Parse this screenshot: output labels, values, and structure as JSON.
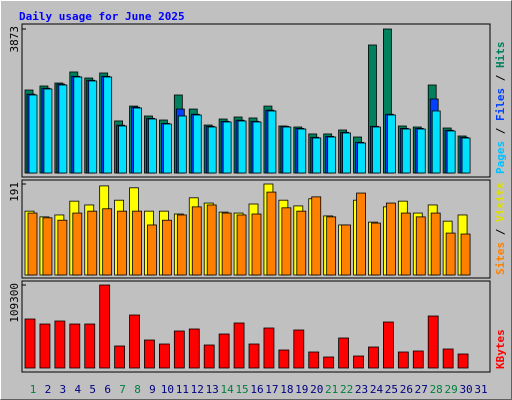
{
  "chart_data": {
    "type": "bar",
    "title": "Daily usage for June 2025",
    "legend_separator": " / ",
    "categories": [
      "1",
      "2",
      "3",
      "4",
      "5",
      "6",
      "7",
      "8",
      "9",
      "10",
      "11",
      "12",
      "13",
      "14",
      "15",
      "16",
      "17",
      "18",
      "19",
      "20",
      "21",
      "22",
      "23",
      "24",
      "25",
      "26",
      "27",
      "28",
      "29",
      "30",
      "31"
    ],
    "category_colors": [
      "#008040",
      "#000080",
      "#000080",
      "#000080",
      "#000080",
      "#000080",
      "#008040",
      "#008040",
      "#000080",
      "#000080",
      "#000080",
      "#000080",
      "#000080",
      "#008040",
      "#008040",
      "#000080",
      "#000080",
      "#000080",
      "#000080",
      "#000080",
      "#008040",
      "#008040",
      "#000080",
      "#000080",
      "#000080",
      "#000080",
      "#000080",
      "#008040",
      "#008040",
      "#000080",
      "#000080"
    ],
    "panels": [
      {
        "ylim": [
          0,
          3873
        ],
        "yticks": [
          3873
        ],
        "series": [
          {
            "name": "Hits",
            "color": "#00805c",
            "label_color": "#00805c",
            "values": [
              2232,
              2340,
              2420,
              2717,
              2555,
              2690,
              1400,
              1800,
              1533,
              1425,
              2098,
              1720,
              1290,
              1452,
              1506,
              1480,
              1800,
              1264,
              1237,
              1050,
              1050,
              1157,
              968,
              3443,
              3873,
              1264,
              1237,
              2367,
              1210,
              995,
              null
            ]
          },
          {
            "name": "Files",
            "color": "#0040ff",
            "label_color": "#0040ff",
            "values": [
              2120,
              2280,
              2390,
              2600,
              2495,
              2600,
              1285,
              1770,
              1470,
              1335,
              1720,
              1580,
              1255,
              1390,
              1420,
              1390,
              1690,
              1255,
              1200,
              960,
              985,
              1095,
              825,
              1255,
              1580,
              1200,
              1200,
              1990,
              1150,
              960,
              null
            ]
          },
          {
            "name": "Pages",
            "color": "#00e0ff",
            "label_color": "#00c0ff",
            "values": [
              2098,
              2260,
              2367,
              2582,
              2475,
              2582,
              1264,
              1748,
              1452,
              1318,
              1533,
              1560,
              1237,
              1372,
              1399,
              1372,
              1668,
              1237,
              1183,
              941,
              968,
              1076,
              807,
              1237,
              1560,
              1183,
              1183,
              1668,
              1130,
              941,
              null
            ]
          }
        ]
      },
      {
        "ylim": [
          0,
          191
        ],
        "yticks": [
          191
        ],
        "series": [
          {
            "name": "Visits",
            "color": "#ffff00",
            "label_color": "#e0e000",
            "values": [
              134,
              122,
              126,
              155,
              147,
              187,
              157,
              183,
              134,
              134,
              128,
              162,
              151,
              132,
              130,
              149,
              191,
              157,
              145,
              160,
              124,
              105,
              157,
              111,
              143,
              155,
              130,
              147,
              113,
              126,
              null
            ]
          },
          {
            "name": "Sites",
            "color": "#ff8000",
            "label_color": "#ff8000",
            "values": [
              130,
              120,
              115,
              130,
              134,
              139,
              134,
              134,
              105,
              115,
              126,
              143,
              147,
              130,
              126,
              128,
              174,
              141,
              134,
              164,
              122,
              105,
              172,
              109,
              151,
              130,
              122,
              130,
              88,
              86,
              null
            ]
          }
        ]
      },
      {
        "ylim": [
          0,
          109300
        ],
        "yticks": [
          109300
        ],
        "series": [
          {
            "name": "KBytes",
            "color": "#ff0000",
            "label_color": "#ff0000",
            "values": [
              64530,
              57940,
              61890,
              57940,
              57940,
              109300,
              28970,
              69790,
              36870,
              31600,
              48720,
              51360,
              30290,
              44770,
              59260,
              31600,
              52670,
              23700,
              50040,
              21070,
              14480,
              39500,
              15800,
              27650,
              60570,
              21070,
              22390,
              68470,
              25020,
              18440,
              null
            ]
          }
        ]
      }
    ]
  }
}
